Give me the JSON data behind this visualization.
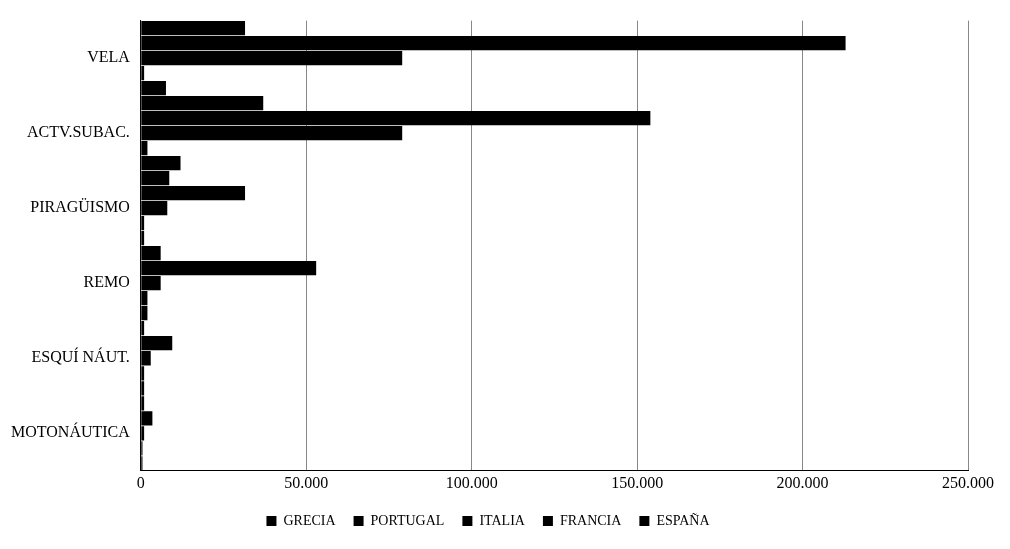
{
  "chart_data": {
    "type": "bar",
    "orientation": "horizontal",
    "categories": [
      "VELA",
      "ACTV.SUBAC.",
      "PIRAGÜISMO",
      "REMO",
      "ESQUÍ NÁUT.",
      "MOTONÁUTICA"
    ],
    "series": [
      {
        "name": "ESPAÑA",
        "color": "#000000",
        "values": [
          31500,
          37000,
          8600,
          6000,
          1000,
          1000
        ]
      },
      {
        "name": "FRANCIA",
        "color": "#000000",
        "values": [
          213000,
          154000,
          31500,
          53000,
          9500,
          3500
        ]
      },
      {
        "name": "ITALIA",
        "color": "#000000",
        "values": [
          79000,
          79000,
          8000,
          6000,
          3000,
          1000
        ]
      },
      {
        "name": "PORTUGAL",
        "color": "#000000",
        "values": [
          1000,
          2000,
          1000,
          2000,
          1000,
          500
        ]
      },
      {
        "name": "GRECIA",
        "color": "#000000",
        "values": [
          7600,
          12000,
          1000,
          2000,
          1000,
          500
        ]
      }
    ],
    "xlim": [
      0,
      250000
    ],
    "xticks": [
      {
        "value": 0,
        "label": "0"
      },
      {
        "value": 50000,
        "label": "50.000"
      },
      {
        "value": 100000,
        "label": "100.000"
      },
      {
        "value": 150000,
        "label": "150.000"
      },
      {
        "value": 200000,
        "label": "200.000"
      },
      {
        "value": 250000,
        "label": "250.000"
      }
    ],
    "grid": "x",
    "legend": "bottom"
  }
}
